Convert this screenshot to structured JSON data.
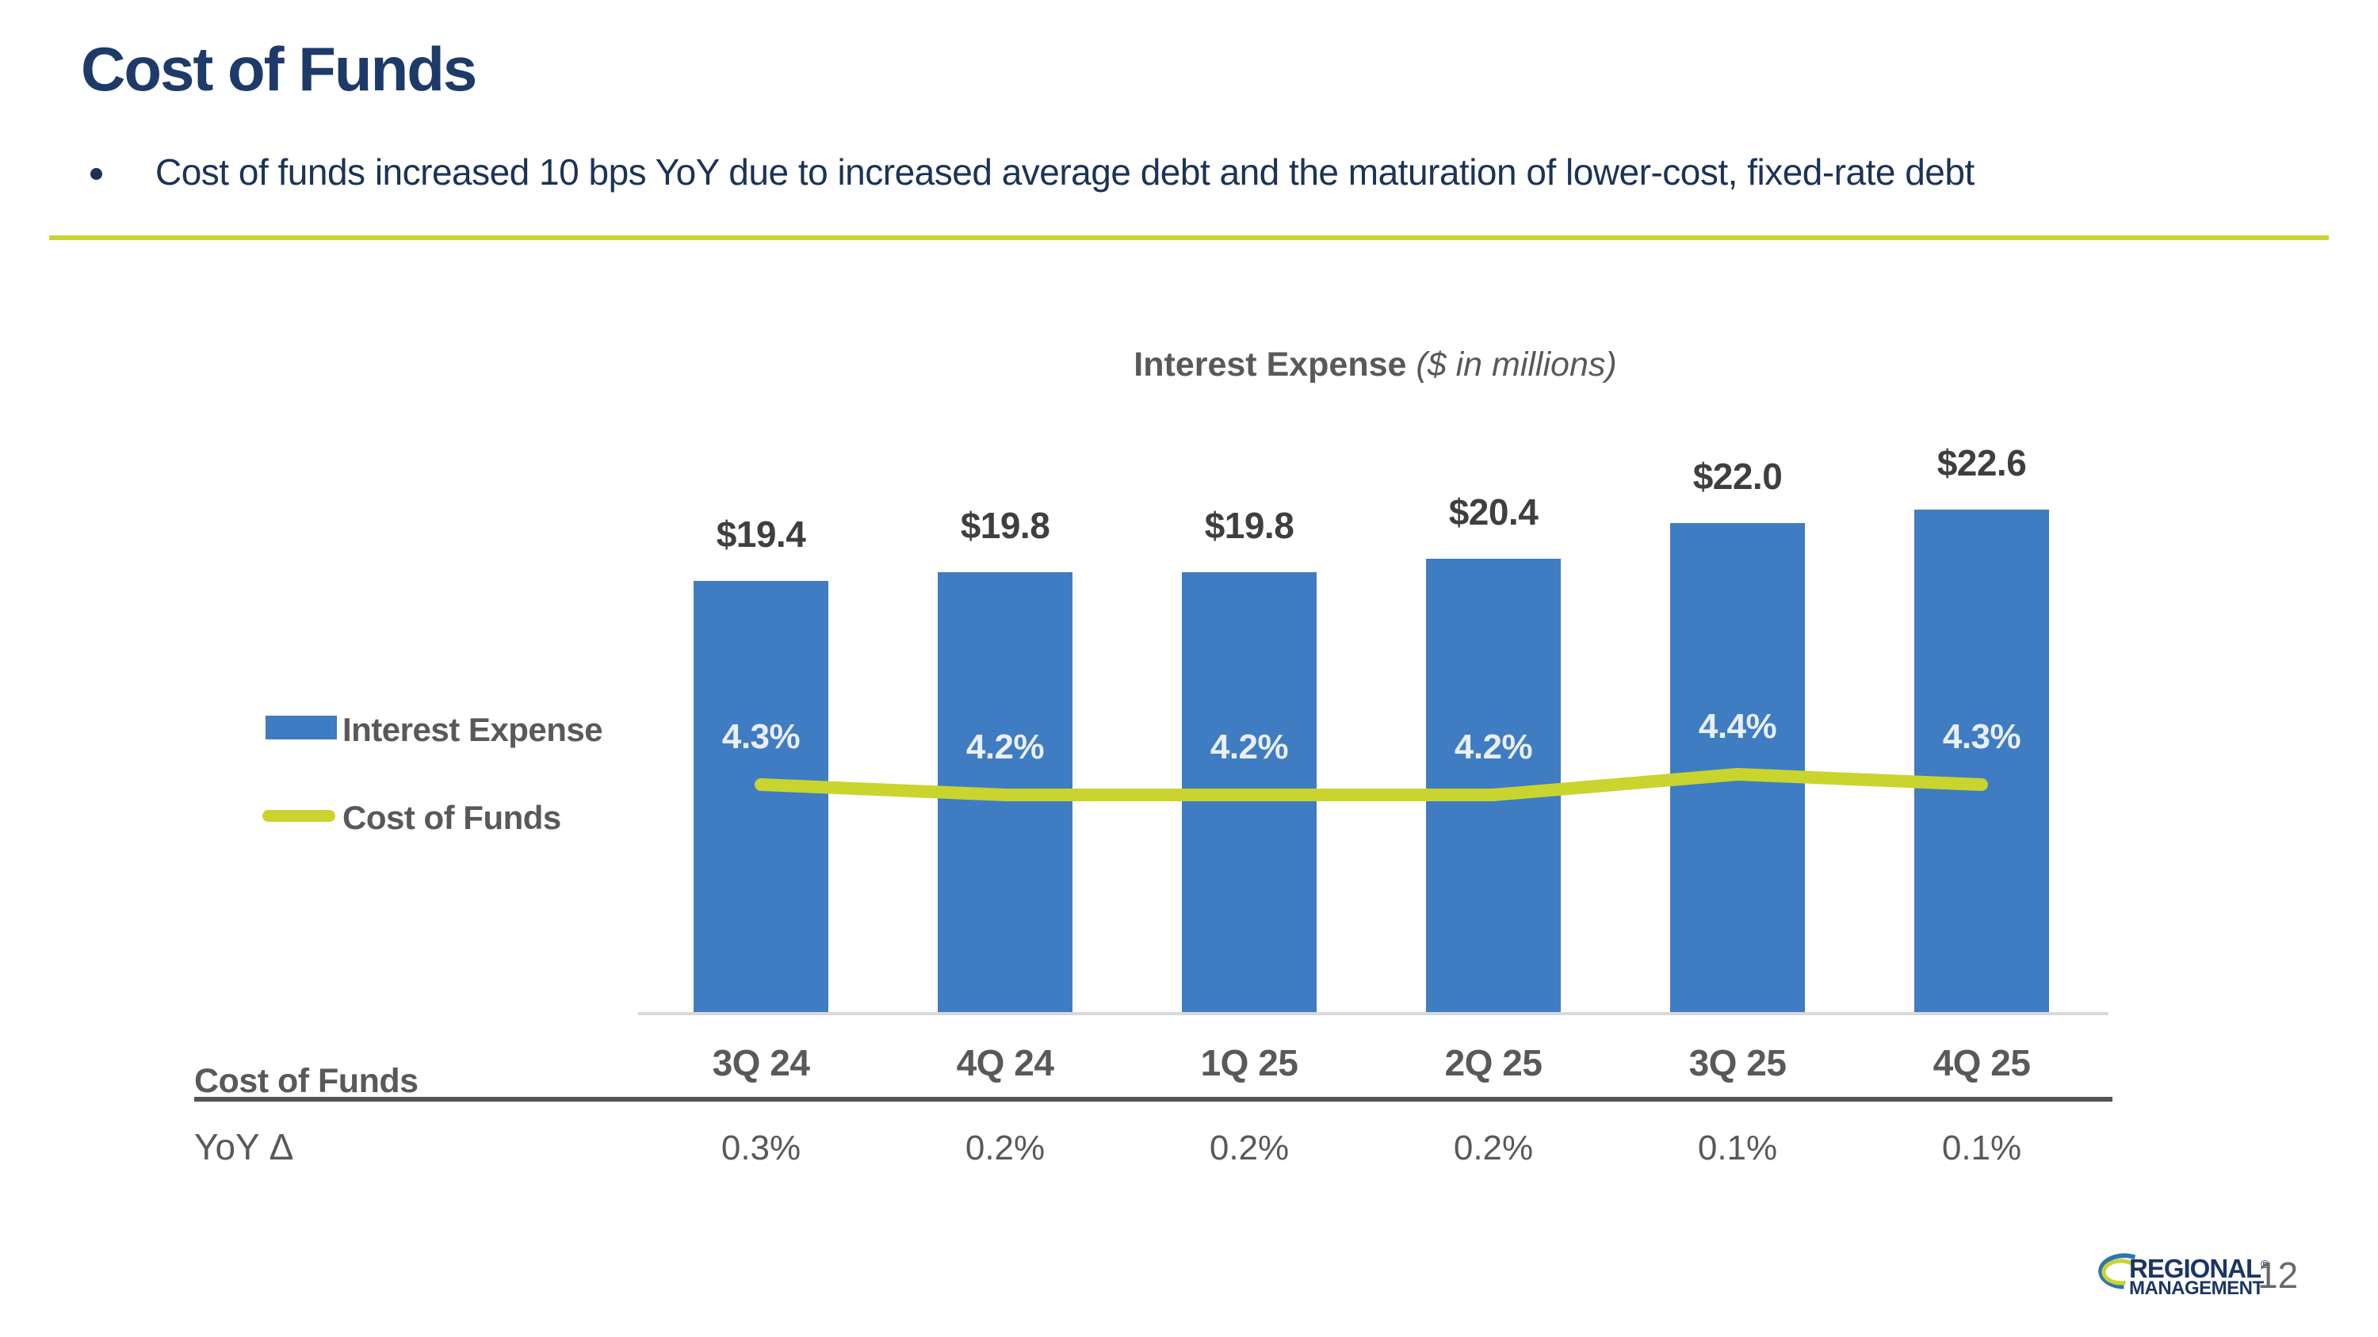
{
  "slide": {
    "title": "Cost of Funds",
    "bullet_text": "Cost of funds increased 10 bps YoY due to increased average debt and the maturation of lower-cost, fixed-rate debt",
    "page_number": "12"
  },
  "chart": {
    "title_main": "Interest Expense",
    "title_note": "($ in millions)"
  },
  "chart_data": {
    "type": "bar",
    "title": "Interest Expense ($ in millions)",
    "categories": [
      "3Q 24",
      "4Q 24",
      "1Q 25",
      "2Q 25",
      "3Q 25",
      "4Q 25"
    ],
    "series": [
      {
        "name": "Interest Expense",
        "type": "bar",
        "values": [
          19.4,
          19.8,
          19.8,
          20.4,
          22.0,
          22.6
        ],
        "data_labels": [
          "$19.4",
          "$19.8",
          "$19.8",
          "$20.4",
          "$22.0",
          "$22.6"
        ]
      },
      {
        "name": "Cost of Funds",
        "type": "line",
        "values": [
          4.3,
          4.2,
          4.2,
          4.2,
          4.4,
          4.3
        ],
        "data_labels": [
          "4.3%",
          "4.2%",
          "4.2%",
          "4.2%",
          "4.4%",
          "4.3%"
        ]
      }
    ],
    "ylim": [
      0,
      24
    ],
    "gridlines": false,
    "y_axis_visible": false,
    "legend_position": "left"
  },
  "table": {
    "header_label": "Cost of Funds",
    "row_label": "YoY Δ",
    "values": [
      "0.3%",
      "0.2%",
      "0.2%",
      "0.2%",
      "0.1%",
      "0.1%"
    ]
  },
  "logo": {
    "line1": "REGIONAL",
    "reg_mark": "®",
    "line2": "MANAGEMENT"
  },
  "colors": {
    "navy": "#1E3A68",
    "bar_blue": "#3F7CC1",
    "line_green": "#C9D42E",
    "gray_text": "#595959",
    "value_label": "#3F3F3F",
    "pct_label": "#E9EFF7",
    "baseline": "#D9D9D9",
    "table_rule": "#545454"
  }
}
